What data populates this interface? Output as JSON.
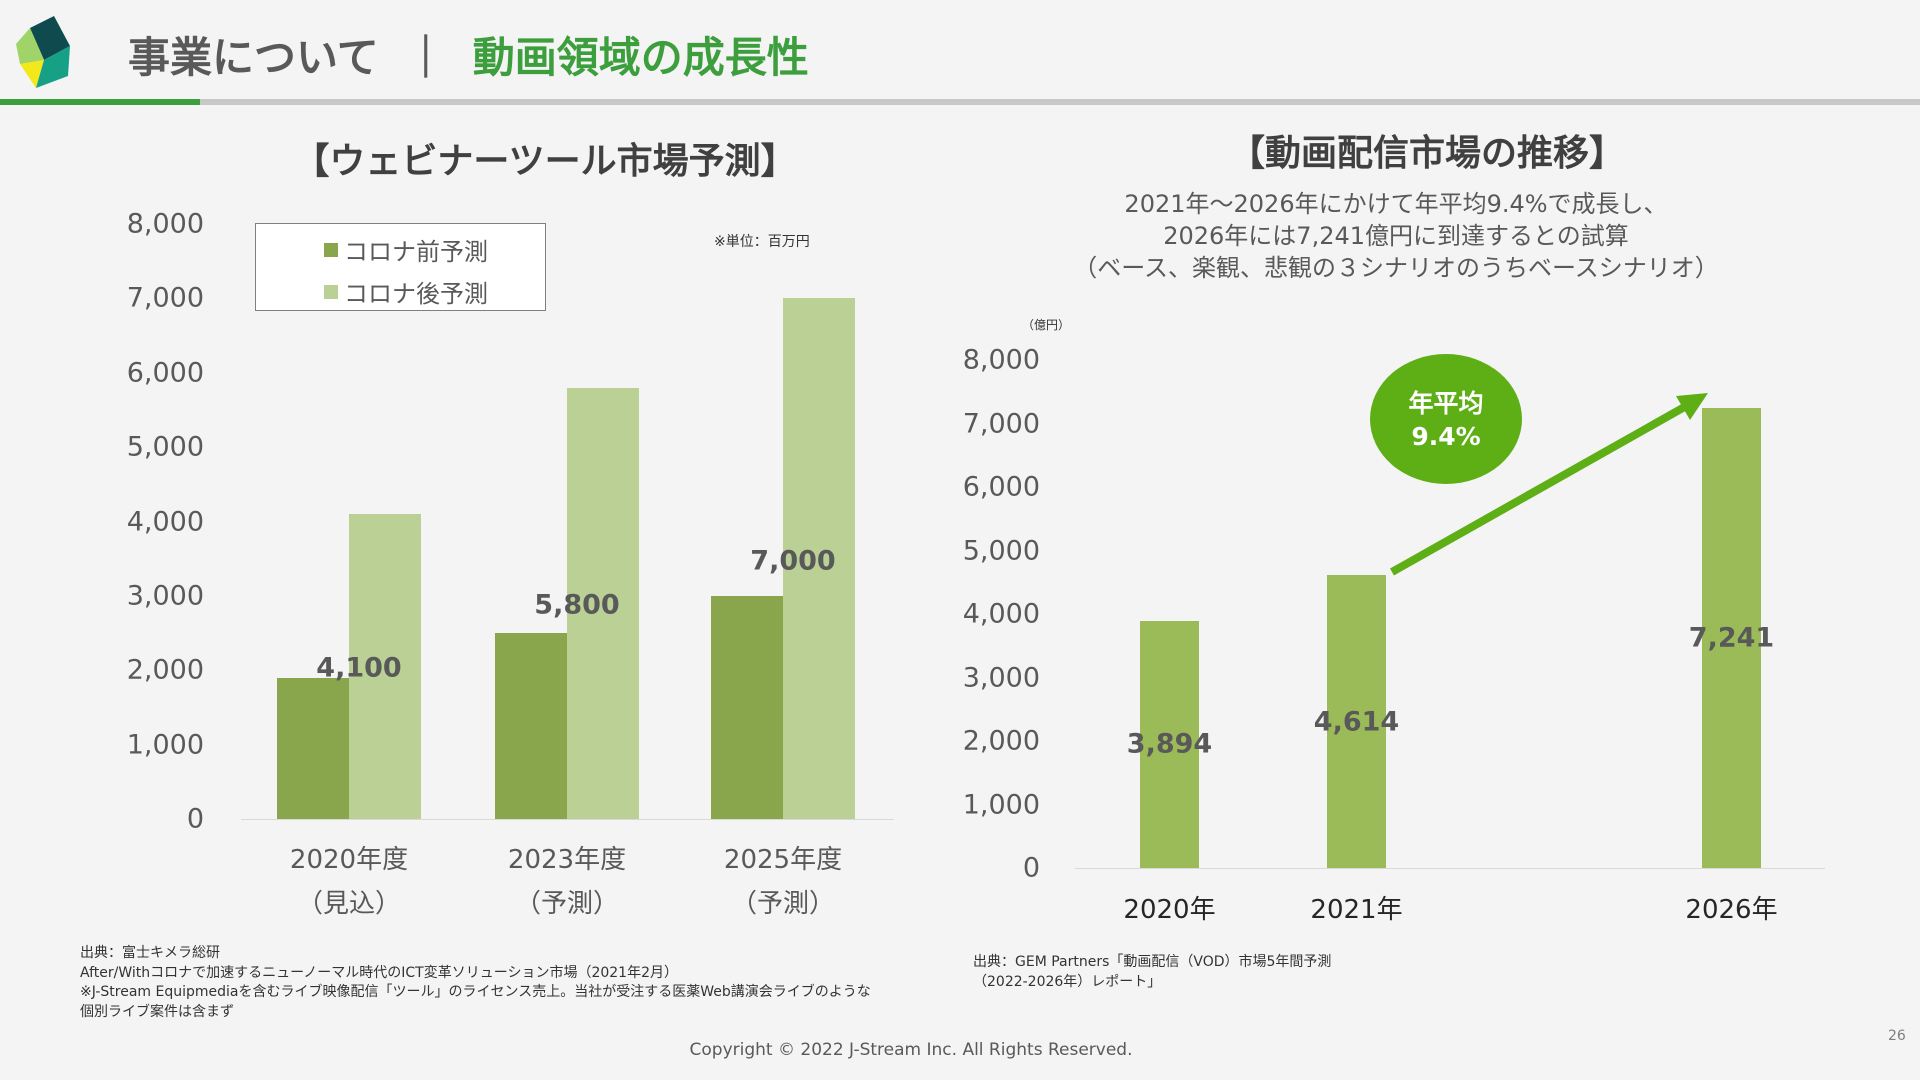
{
  "header": {
    "title": "事業について",
    "separator": "｜",
    "subtitle": "動画領域の成長性"
  },
  "colors": {
    "accent": "#3c9e3c",
    "pre_covid": "#8aa64c",
    "post_covid": "#bad095",
    "vod_bar": "#9bbb59",
    "arrow": "#5eae16"
  },
  "chart_data": [
    {
      "type": "bar",
      "title": "【ウェビナーツール市場予測】",
      "unit_note": "※単位：百万円",
      "categories": [
        [
          "2020年度",
          "（見込）"
        ],
        [
          "2023年度",
          "（予測）"
        ],
        [
          "2025年度",
          "（予測）"
        ]
      ],
      "ylim": [
        0,
        8000
      ],
      "yticks": [
        "0",
        "1,000",
        "2,000",
        "3,000",
        "4,000",
        "5,000",
        "6,000",
        "7,000",
        "8,000"
      ],
      "legend_position": "top-left",
      "series": [
        {
          "name": "コロナ前予測",
          "values": [
            1900,
            2500,
            3000
          ]
        },
        {
          "name": "コロナ後予測",
          "values": [
            4100,
            5800,
            7000
          ],
          "labels": [
            "4,100",
            "5,800",
            "7,000"
          ]
        }
      ]
    },
    {
      "type": "bar",
      "title": "【動画配信市場の推移】",
      "subtitle": [
        "2021年～2026年にかけて年平均9.4%で成長し、",
        "2026年には7,241億円に到達するとの試算",
        "（ベース、楽観、悲観の３シナリオのうちベースシナリオ）"
      ],
      "unit": "（億円）",
      "categories": [
        "2020年",
        "2021年",
        "2026年"
      ],
      "ylim": [
        0,
        8000
      ],
      "yticks": [
        "0",
        "1,000",
        "2,000",
        "3,000",
        "4,000",
        "5,000",
        "6,000",
        "7,000",
        "8,000"
      ],
      "values": [
        3894,
        4614,
        7241
      ],
      "labels": [
        "3,894",
        "4,614",
        "7,241"
      ],
      "annotation": {
        "line1": "年平均",
        "line2": "9.4%"
      }
    }
  ],
  "footer": {
    "left_notes": [
      "出典：富士キメラ総研",
      "After/Withコロナで加速するニューノーマル時代のICT変革ソリューション市場（2021年2月）",
      "※J-Stream Equipmediaを含むライブ映像配信「ツール」のライセンス売上。当社が受注する医薬Web講演会ライブのような",
      "個別ライブ案件は含まず"
    ],
    "right_notes": [
      "出典：GEM Partners「動画配信（VOD）市場5年間予測",
      "（2022-2026年）レポート」"
    ],
    "copyright": "Copyright © 2022 J-Stream Inc. All Rights Reserved.",
    "page_number": "26"
  }
}
